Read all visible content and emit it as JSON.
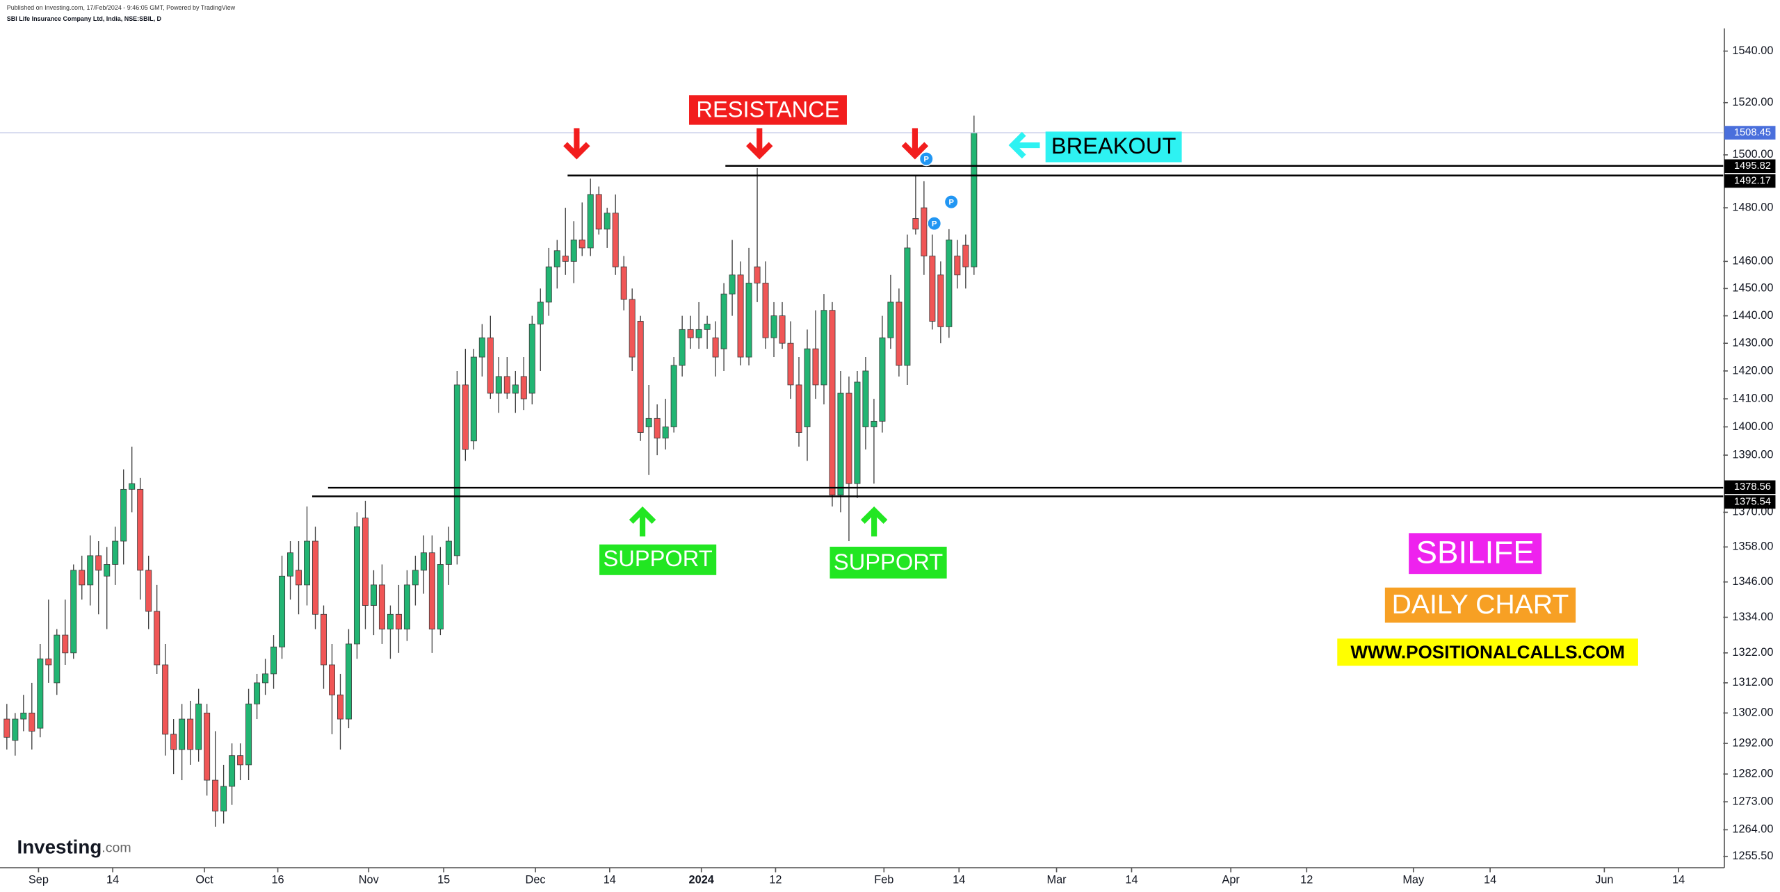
{
  "header": {
    "published": "Published on Investing.com, 17/Feb/2024 - 9:46:05 GMT, Powered by TradingView",
    "symbol": "SBI Life Insurance Company Ltd, India, NSE:SBIL, D"
  },
  "logo": {
    "name": "Investing",
    "suffix": ".com"
  },
  "chart_data": {
    "type": "candlestick",
    "log_scale": true,
    "grid": false,
    "up_color": "#22b573",
    "down_color": "#f05656",
    "open": [
      1300,
      1293,
      1300,
      1302,
      1297,
      1320,
      1312,
      1328,
      1322,
      1350,
      1345,
      1355,
      1348,
      1352,
      1360,
      1378,
      1378,
      1350,
      1336,
      1318,
      1295,
      1290,
      1300,
      1290,
      1302,
      1280,
      1270,
      1278,
      1288,
      1285,
      1305,
      1312,
      1315,
      1324,
      1348,
      1350,
      1345,
      1360,
      1335,
      1318,
      1308,
      1300,
      1325,
      1368,
      1338,
      1345,
      1330,
      1335,
      1330,
      1345,
      1350,
      1356,
      1330,
      1352,
      1355,
      1415,
      1395,
      1425,
      1432,
      1412,
      1418,
      1412,
      1418,
      1412,
      1437,
      1445,
      1458,
      1462,
      1460,
      1468,
      1465,
      1485,
      1472,
      1478,
      1458,
      1446,
      1438,
      1400,
      1403,
      1396,
      1400,
      1422,
      1435,
      1432,
      1435,
      1432,
      1428,
      1448,
      1455,
      1425,
      1458,
      1452,
      1432,
      1440,
      1430,
      1415,
      1400,
      1428,
      1415,
      1442,
      1376,
      1412,
      1380,
      1400,
      1400,
      1402,
      1432,
      1445,
      1422,
      1476,
      1480,
      1462,
      1455,
      1436,
      1462,
      1466,
      1458
    ],
    "high": [
      1305,
      1302,
      1308,
      1312,
      1325,
      1340,
      1330,
      1340,
      1352,
      1355,
      1362,
      1360,
      1358,
      1365,
      1385,
      1393,
      1382,
      1355,
      1345,
      1325,
      1300,
      1305,
      1306,
      1310,
      1305,
      1296,
      1285,
      1292,
      1292,
      1310,
      1315,
      1320,
      1328,
      1355,
      1360,
      1360,
      1372,
      1365,
      1338,
      1325,
      1315,
      1330,
      1370,
      1374,
      1350,
      1352,
      1338,
      1345,
      1350,
      1355,
      1362,
      1362,
      1358,
      1365,
      1420,
      1428,
      1428,
      1437,
      1440,
      1425,
      1425,
      1420,
      1425,
      1440,
      1450,
      1465,
      1468,
      1480,
      1475,
      1482,
      1491,
      1488,
      1480,
      1485,
      1462,
      1450,
      1440,
      1415,
      1408,
      1410,
      1425,
      1440,
      1440,
      1445,
      1440,
      1438,
      1452,
      1468,
      1460,
      1465,
      1495,
      1460,
      1445,
      1445,
      1438,
      1425,
      1435,
      1442,
      1448,
      1445,
      1420,
      1418,
      1420,
      1425,
      1410,
      1440,
      1455,
      1450,
      1470,
      1492,
      1490,
      1470,
      1460,
      1472,
      1468,
      1470,
      1515
    ],
    "low": [
      1290,
      1288,
      1296,
      1290,
      1294,
      1312,
      1308,
      1318,
      1320,
      1340,
      1338,
      1335,
      1330,
      1345,
      1352,
      1370,
      1340,
      1330,
      1315,
      1288,
      1282,
      1280,
      1285,
      1286,
      1275,
      1265,
      1266,
      1272,
      1280,
      1280,
      1300,
      1308,
      1310,
      1320,
      1340,
      1335,
      1338,
      1330,
      1310,
      1295,
      1290,
      1297,
      1320,
      1330,
      1328,
      1325,
      1320,
      1322,
      1326,
      1338,
      1342,
      1322,
      1328,
      1345,
      1352,
      1388,
      1392,
      1418,
      1410,
      1405,
      1410,
      1405,
      1406,
      1408,
      1420,
      1440,
      1450,
      1455,
      1452,
      1462,
      1462,
      1470,
      1465,
      1455,
      1442,
      1420,
      1395,
      1383,
      1390,
      1392,
      1398,
      1418,
      1428,
      1428,
      1428,
      1418,
      1420,
      1440,
      1422,
      1422,
      1445,
      1428,
      1425,
      1428,
      1410,
      1393,
      1388,
      1410,
      1408,
      1372,
      1370,
      1360,
      1375,
      1392,
      1380,
      1398,
      1428,
      1418,
      1415,
      1470,
      1455,
      1435,
      1430,
      1432,
      1450,
      1450,
      1455
    ],
    "close": [
      1294,
      1300,
      1302,
      1296,
      1320,
      1318,
      1328,
      1322,
      1350,
      1345,
      1355,
      1350,
      1352,
      1360,
      1378,
      1380,
      1350,
      1336,
      1318,
      1295,
      1290,
      1300,
      1290,
      1305,
      1280,
      1270,
      1278,
      1288,
      1285,
      1305,
      1312,
      1315,
      1324,
      1348,
      1356,
      1345,
      1360,
      1335,
      1318,
      1308,
      1300,
      1325,
      1365,
      1338,
      1345,
      1330,
      1335,
      1330,
      1345,
      1350,
      1356,
      1330,
      1352,
      1360,
      1415,
      1392,
      1425,
      1432,
      1412,
      1418,
      1412,
      1415,
      1410,
      1437,
      1445,
      1458,
      1464,
      1460,
      1468,
      1465,
      1485,
      1472,
      1478,
      1458,
      1446,
      1425,
      1398,
      1403,
      1396,
      1400,
      1422,
      1435,
      1432,
      1435,
      1437,
      1425,
      1448,
      1455,
      1425,
      1452,
      1452,
      1432,
      1440,
      1430,
      1415,
      1398,
      1428,
      1415,
      1442,
      1376,
      1412,
      1380,
      1416,
      1420,
      1402,
      1432,
      1445,
      1422,
      1465,
      1472,
      1462,
      1438,
      1436,
      1468,
      1455,
      1458,
      1508.45
    ],
    "xlim": [
      -0.82,
      205.86
    ],
    "xticks": [
      {
        "value": 3.8,
        "label": "Sep"
      },
      {
        "value": 12.7,
        "label": "14"
      },
      {
        "value": 23.7,
        "label": "Oct"
      },
      {
        "value": 32.5,
        "label": "16"
      },
      {
        "value": 43.4,
        "label": "Nov"
      },
      {
        "value": 52.4,
        "label": "15"
      },
      {
        "value": 63.4,
        "label": "Dec"
      },
      {
        "value": 72.3,
        "label": "14"
      },
      {
        "value": 83.3,
        "label": "2024"
      },
      {
        "value": 92.2,
        "label": "12"
      },
      {
        "value": 105.2,
        "label": "Feb"
      },
      {
        "value": 114.2,
        "label": "14"
      },
      {
        "value": 125.9,
        "label": "Mar"
      },
      {
        "value": 134.9,
        "label": "14"
      },
      {
        "value": 146.8,
        "label": "Apr"
      },
      {
        "value": 155.9,
        "label": "12"
      },
      {
        "value": 168.7,
        "label": "May"
      },
      {
        "value": 177.9,
        "label": "14"
      },
      {
        "value": 191.6,
        "label": "Jun"
      },
      {
        "value": 200.5,
        "label": "14"
      }
    ],
    "ylim": [
      1251.9,
      1548.9
    ],
    "yticks": [
      {
        "value": 1540,
        "label": "1540.00"
      },
      {
        "value": 1520,
        "label": "1520.00"
      },
      {
        "value": 1500,
        "label": "1500.00"
      },
      {
        "value": 1480,
        "label": "1480.00"
      },
      {
        "value": 1460,
        "label": "1460.00"
      },
      {
        "value": 1450,
        "label": "1450.00"
      },
      {
        "value": 1440,
        "label": "1440.00"
      },
      {
        "value": 1430,
        "label": "1430.00"
      },
      {
        "value": 1420,
        "label": "1420.00"
      },
      {
        "value": 1410,
        "label": "1410.00"
      },
      {
        "value": 1400,
        "label": "1400.00"
      },
      {
        "value": 1390,
        "label": "1390.00"
      },
      {
        "value": 1370,
        "label": "1370.00"
      },
      {
        "value": 1358,
        "label": "1358.00"
      },
      {
        "value": 1346,
        "label": "1346.00"
      },
      {
        "value": 1334,
        "label": "1334.00"
      },
      {
        "value": 1322,
        "label": "1322.00"
      },
      {
        "value": 1312,
        "label": "1312.00"
      },
      {
        "value": 1302,
        "label": "1302.00"
      },
      {
        "value": 1292,
        "label": "1292.00"
      },
      {
        "value": 1282,
        "label": "1282.00"
      },
      {
        "value": 1273,
        "label": "1273.00"
      },
      {
        "value": 1264,
        "label": "1264.00"
      },
      {
        "value": 1255.5,
        "label": "1255.50"
      }
    ],
    "levels": [
      1495.82,
      1492.17,
      1378.56,
      1375.54
    ],
    "pivot_markers": [
      "P",
      "P",
      "P"
    ],
    "annotations": {
      "resistance": "RESISTANCE",
      "breakout": "BREAKOUT",
      "support_1": "SUPPORT",
      "support_2": "SUPPORT",
      "symbol": "SBILIFE",
      "timeframe": "DAILY CHART",
      "website": "WWW.POSITIONALCALLS.COM"
    }
  }
}
